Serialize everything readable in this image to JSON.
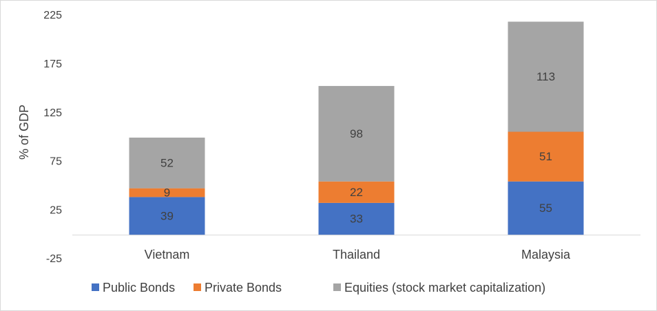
{
  "chart_data": {
    "type": "stacked_bar",
    "y_label": "% of GDP",
    "categories": [
      "Vietnam",
      "Thailand",
      "Malaysia"
    ],
    "series": [
      {
        "name": "Public Bonds",
        "color": "#4472c4",
        "values": [
          39,
          33,
          55
        ]
      },
      {
        "name": "Private Bonds",
        "color": "#ed7d31",
        "values": [
          9,
          22,
          51
        ]
      },
      {
        "name": "Equities (stock market capitalization)",
        "color": "#a5a5a5",
        "values": [
          52,
          98,
          113
        ]
      }
    ],
    "ylim": [
      -25,
      225
    ],
    "yticks": [
      -25,
      25,
      75,
      125,
      175,
      225
    ],
    "grid": false,
    "legend": "bottom"
  }
}
